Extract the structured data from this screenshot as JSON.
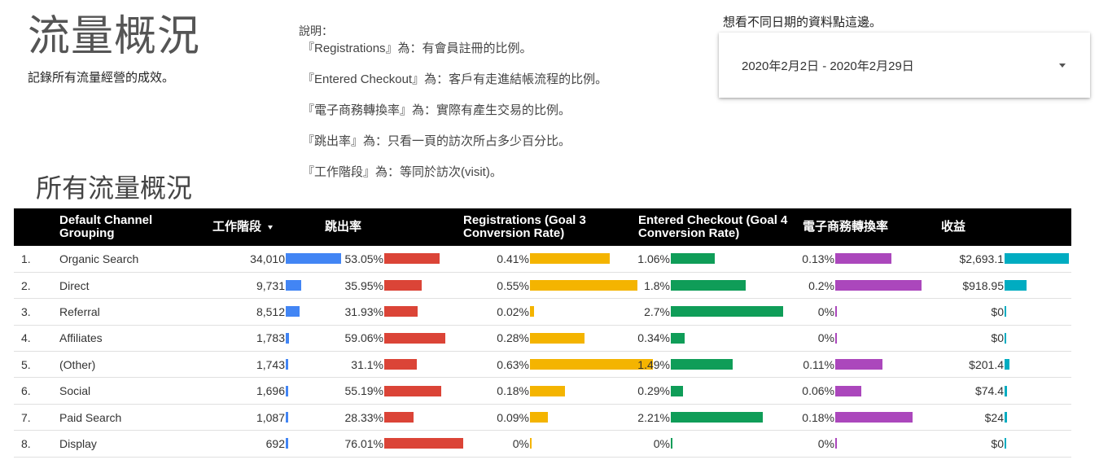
{
  "header": {
    "title": "流量概況",
    "subtitle": "記錄所有流量經營的成效。"
  },
  "notes": {
    "title": "說明：",
    "lines": [
      "『Registrations』為：有會員註冊的比例。",
      "『Entered Checkout』為：客戶有走進結帳流程的比例。",
      "『電子商務轉換率』為：實際有產生交易的比例。",
      "『跳出率』為：只看一頁的訪次所占多少百分比。",
      "『工作階段』為：等同於訪次(visit)。"
    ]
  },
  "date_control": {
    "hint": "想看不同日期的資料點這邊。",
    "range": "2020年2月2日 - 2020年2月29日",
    "icon": "caret-down-icon"
  },
  "section": {
    "title": "所有流量概況"
  },
  "table": {
    "columns": [
      {
        "key": "channel",
        "label": "Default Channel Grouping"
      },
      {
        "key": "sessions",
        "label": "工作階段",
        "sorted": "desc",
        "color": "#4285f4"
      },
      {
        "key": "bounce",
        "label": "跳出率",
        "color": "#db4437"
      },
      {
        "key": "reg",
        "label": "Registrations (Goal 3 Conversion Rate)",
        "color": "#f4b400"
      },
      {
        "key": "checkout",
        "label": "Entered Checkout (Goal 4 Conversion Rate)",
        "color": "#0f9d58"
      },
      {
        "key": "ecom",
        "label": "電子商務轉換率",
        "color": "#ab47bc"
      },
      {
        "key": "revenue",
        "label": "收益",
        "color": "#00acc1"
      }
    ],
    "rows": [
      {
        "index": "1.",
        "channel": "Organic Search",
        "sessions": "34,010",
        "sessions_v": 34010,
        "bounce": "53.05%",
        "bounce_v": 53.05,
        "reg": "0.41%",
        "reg_v": 0.41,
        "checkout": "1.06%",
        "checkout_v": 1.06,
        "ecom": "0.13%",
        "ecom_v": 0.13,
        "revenue": "$2,693.1",
        "revenue_v": 2693.1
      },
      {
        "index": "2.",
        "channel": "Direct",
        "sessions": "9,731",
        "sessions_v": 9731,
        "bounce": "35.95%",
        "bounce_v": 35.95,
        "reg": "0.55%",
        "reg_v": 0.55,
        "checkout": "1.8%",
        "checkout_v": 1.8,
        "ecom": "0.2%",
        "ecom_v": 0.2,
        "revenue": "$918.95",
        "revenue_v": 918.95
      },
      {
        "index": "3.",
        "channel": "Referral",
        "sessions": "8,512",
        "sessions_v": 8512,
        "bounce": "31.93%",
        "bounce_v": 31.93,
        "reg": "0.02%",
        "reg_v": 0.02,
        "checkout": "2.7%",
        "checkout_v": 2.7,
        "ecom": "0%",
        "ecom_v": 0,
        "revenue": "$0",
        "revenue_v": 0
      },
      {
        "index": "4.",
        "channel": "Affiliates",
        "sessions": "1,783",
        "sessions_v": 1783,
        "bounce": "59.06%",
        "bounce_v": 59.06,
        "reg": "0.28%",
        "reg_v": 0.28,
        "checkout": "0.34%",
        "checkout_v": 0.34,
        "ecom": "0%",
        "ecom_v": 0,
        "revenue": "$0",
        "revenue_v": 0
      },
      {
        "index": "5.",
        "channel": "(Other)",
        "sessions": "1,743",
        "sessions_v": 1743,
        "bounce": "31.1%",
        "bounce_v": 31.1,
        "reg": "0.63%",
        "reg_v": 0.63,
        "checkout": "1.49%",
        "checkout_v": 1.49,
        "ecom": "0.11%",
        "ecom_v": 0.11,
        "revenue": "$201.4",
        "revenue_v": 201.4
      },
      {
        "index": "6.",
        "channel": "Social",
        "sessions": "1,696",
        "sessions_v": 1696,
        "bounce": "55.19%",
        "bounce_v": 55.19,
        "reg": "0.18%",
        "reg_v": 0.18,
        "checkout": "0.29%",
        "checkout_v": 0.29,
        "ecom": "0.06%",
        "ecom_v": 0.06,
        "revenue": "$74.4",
        "revenue_v": 74.4
      },
      {
        "index": "7.",
        "channel": "Paid Search",
        "sessions": "1,087",
        "sessions_v": 1087,
        "bounce": "28.33%",
        "bounce_v": 28.33,
        "reg": "0.09%",
        "reg_v": 0.09,
        "checkout": "2.21%",
        "checkout_v": 2.21,
        "ecom": "0.18%",
        "ecom_v": 0.18,
        "revenue": "$24",
        "revenue_v": 24
      },
      {
        "index": "8.",
        "channel": "Display",
        "sessions": "692",
        "sessions_v": 692,
        "bounce": "76.01%",
        "bounce_v": 76.01,
        "reg": "0%",
        "reg_v": 0,
        "checkout": "0%",
        "checkout_v": 0,
        "ecom": "0%",
        "ecom_v": 0,
        "revenue": "$0",
        "revenue_v": 0
      }
    ]
  }
}
